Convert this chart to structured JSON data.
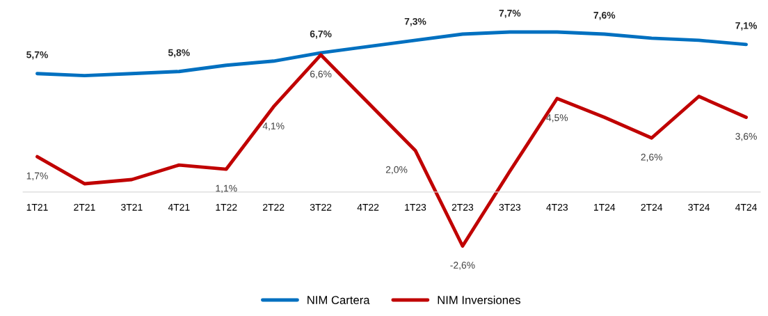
{
  "chart_data": {
    "type": "line",
    "categories": [
      "1T21",
      "2T21",
      "3T21",
      "4T21",
      "1T22",
      "2T22",
      "3T22",
      "4T22",
      "1T23",
      "2T23",
      "3T23",
      "4T23",
      "1T24",
      "2T24",
      "3T24",
      "4T24"
    ],
    "series": [
      {
        "name": "NIM Cartera",
        "color": "#0070c0",
        "values": [
          5.7,
          5.6,
          5.7,
          5.8,
          6.1,
          6.3,
          6.7,
          7.0,
          7.3,
          7.6,
          7.7,
          7.7,
          7.6,
          7.4,
          7.3,
          7.1
        ],
        "value_labels": [
          "5,7%",
          null,
          null,
          "5,8%",
          null,
          null,
          "6,7%",
          null,
          "7,3%",
          null,
          "7,7%",
          null,
          "7,6%",
          null,
          null,
          "7,1%"
        ]
      },
      {
        "name": "NIM Inversiones",
        "color": "#c00000",
        "values": [
          1.7,
          0.4,
          0.6,
          1.3,
          1.1,
          4.1,
          6.6,
          4.3,
          2.0,
          -2.6,
          1.0,
          4.5,
          3.6,
          2.6,
          4.6,
          3.6
        ],
        "value_labels": [
          "1,7%",
          null,
          null,
          null,
          "1,1%",
          "4,1%",
          "6,6%",
          null,
          "2,0%",
          "-2,6%",
          null,
          "4,5%",
          null,
          "2,6%",
          null,
          "3,6%"
        ]
      }
    ],
    "marker": "none",
    "line_style": "solid",
    "grid": false,
    "legend": "bottom"
  }
}
